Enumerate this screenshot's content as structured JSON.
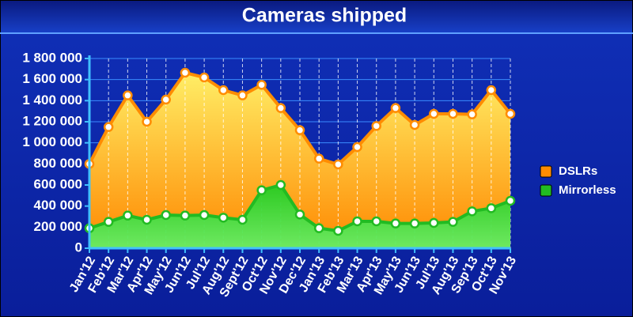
{
  "chart_data": {
    "type": "area",
    "title": "Cameras shipped",
    "categories": [
      "Jan'12",
      "Feb'12",
      "Mar'12",
      "Apr'12",
      "May'12",
      "Jun'12",
      "Jul'12",
      "Aug'12",
      "Sept'12",
      "Oct'12",
      "Nov'12",
      "Dec'12",
      "Jan'13",
      "Feb'13",
      "Mar'13",
      "Apr'13",
      "May'13",
      "Jun'13",
      "Jul'13",
      "Aug'13",
      "Sep'13",
      "Oct'13",
      "Nov'13"
    ],
    "series": [
      {
        "name": "DSLRs",
        "color": "#ff8c00",
        "values": [
          800000,
          1150000,
          1450000,
          1200000,
          1410000,
          1665000,
          1620000,
          1500000,
          1450000,
          1550000,
          1330000,
          1120000,
          850000,
          795000,
          960000,
          1160000,
          1330000,
          1170000,
          1275000,
          1275000,
          1270000,
          1500000,
          1275000
        ]
      },
      {
        "name": "Mirrorless",
        "color": "#22bb22",
        "values": [
          190000,
          250000,
          310000,
          270000,
          315000,
          310000,
          315000,
          290000,
          270000,
          550000,
          600000,
          320000,
          190000,
          165000,
          255000,
          255000,
          235000,
          235000,
          240000,
          250000,
          350000,
          380000,
          450000
        ]
      }
    ],
    "ylim": [
      0,
      1800000
    ],
    "yticks": [
      0,
      {
        "value": 200000,
        "label": "200 000"
      },
      {
        "value": 400000,
        "label": "400 000"
      },
      {
        "value": 600000,
        "label": "600 000"
      },
      {
        "value": 800000,
        "label": "800 000"
      },
      {
        "value": 1000000,
        "label": "1 000 000"
      },
      {
        "value": 1200000,
        "label": "1 200 000"
      },
      {
        "value": 1400000,
        "label": "1 400 000"
      },
      {
        "value": 1600000,
        "label": "1 600 000"
      },
      {
        "value": 1800000,
        "label": "1 800 000"
      }
    ],
    "grid": true,
    "legend": "right"
  }
}
